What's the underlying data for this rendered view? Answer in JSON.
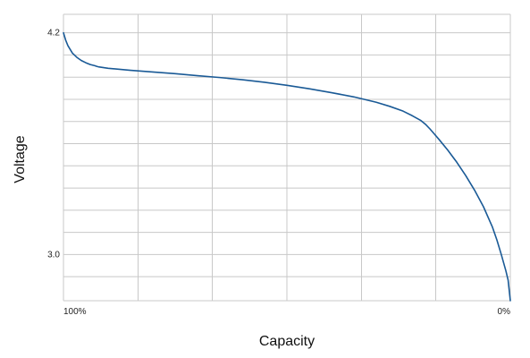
{
  "chart_data": {
    "type": "line",
    "title": "",
    "xlabel": "Capacity",
    "ylabel": "Voltage",
    "x_tick_labels": [
      {
        "x": 100,
        "label": "100%"
      },
      {
        "x": 0,
        "label": "0%"
      }
    ],
    "y_tick_labels": [
      {
        "y": 4.2,
        "label": "4.2"
      },
      {
        "y": 3.0,
        "label": "3.0"
      }
    ],
    "xlim": [
      100,
      0
    ],
    "ylim": [
      2.75,
      4.3
    ],
    "grid": true,
    "grid_x_lines": [
      100,
      83.3,
      66.7,
      50,
      33.3,
      16.7,
      0
    ],
    "grid_y_lines": [
      4.3,
      4.2,
      4.08,
      3.96,
      3.84,
      3.72,
      3.6,
      3.48,
      3.36,
      3.24,
      3.12,
      3.0,
      2.88,
      2.75
    ],
    "line_color": "#1a5a96",
    "series": [
      {
        "x": [
          100,
          99.5,
          99,
          98,
          97,
          96,
          95,
          94,
          93,
          92.5,
          92,
          90,
          85,
          80,
          75,
          70,
          65,
          60,
          55,
          50,
          45,
          40,
          35,
          30,
          27,
          24,
          22,
          20,
          19,
          18,
          17,
          16,
          14,
          12,
          10,
          8,
          6,
          4,
          3,
          2,
          1,
          0.5,
          0
        ],
        "y": [
          4.2,
          4.16,
          4.13,
          4.09,
          4.067,
          4.05,
          4.038,
          4.028,
          4.022,
          4.018,
          4.015,
          4.008,
          3.997,
          3.988,
          3.979,
          3.968,
          3.958,
          3.946,
          3.932,
          3.916,
          3.897,
          3.876,
          3.853,
          3.824,
          3.802,
          3.776,
          3.752,
          3.725,
          3.705,
          3.68,
          3.652,
          3.624,
          3.565,
          3.5,
          3.428,
          3.348,
          3.258,
          3.148,
          3.078,
          2.998,
          2.912,
          2.862,
          2.75
        ]
      }
    ]
  }
}
